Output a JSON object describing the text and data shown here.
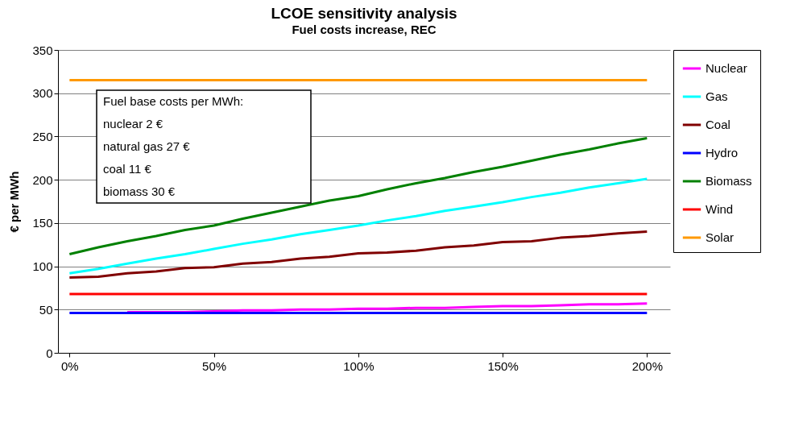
{
  "chart_data": {
    "type": "line",
    "title": "LCOE sensitivity analysis",
    "subtitle": "Fuel costs increase, REC",
    "ylabel": "€ per MWh",
    "x": [
      0,
      10,
      20,
      30,
      40,
      50,
      60,
      70,
      80,
      90,
      100,
      110,
      120,
      130,
      140,
      150,
      160,
      170,
      180,
      190,
      200
    ],
    "xlim": [
      -4,
      208
    ],
    "xticks": [
      {
        "value": 0,
        "label": "0%"
      },
      {
        "value": 50,
        "label": "50%"
      },
      {
        "value": 100,
        "label": "100%"
      },
      {
        "value": 150,
        "label": "150%"
      },
      {
        "value": 200,
        "label": "200%"
      }
    ],
    "ylim": [
      0,
      350
    ],
    "yticks": [
      0,
      50,
      100,
      150,
      200,
      250,
      300,
      350
    ],
    "grid": "y",
    "legend": "right",
    "marker": "none",
    "line_style": "solid",
    "annotations": [
      "Fuel base costs per MWh:",
      "nuclear 2 €",
      "natural gas 27 €",
      "coal 11 €",
      "biomass 30 €"
    ],
    "series": [
      {
        "name": "Nuclear",
        "color": "#ff00ff",
        "values": [
          null,
          null,
          47,
          47,
          47,
          48,
          49,
          49,
          50,
          50,
          51,
          51,
          52,
          52,
          53,
          54,
          54,
          55,
          56,
          56,
          57
        ]
      },
      {
        "name": "Gas",
        "color": "#00ffff",
        "values": [
          92,
          97,
          103,
          109,
          114,
          120,
          126,
          131,
          137,
          142,
          147,
          153,
          158,
          164,
          169,
          174,
          180,
          185,
          191,
          196,
          201
        ]
      },
      {
        "name": "Coal",
        "color": "#800000",
        "values": [
          87,
          88,
          92,
          94,
          98,
          99,
          103,
          105,
          109,
          111,
          115,
          116,
          118,
          122,
          124,
          128,
          129,
          133,
          135,
          138,
          140
        ]
      },
      {
        "name": "Hydro",
        "color": "#0000ff",
        "values": [
          46,
          46,
          46,
          46,
          46,
          46,
          46,
          46,
          46,
          46,
          46,
          46,
          46,
          46,
          46,
          46,
          46,
          46,
          46,
          46,
          46
        ]
      },
      {
        "name": "Biomass",
        "color": "#008000",
        "values": [
          114,
          122,
          129,
          135,
          142,
          147,
          155,
          162,
          169,
          176,
          181,
          189,
          196,
          202,
          209,
          215,
          222,
          229,
          235,
          242,
          248
        ]
      },
      {
        "name": "Wind",
        "color": "#ff0000",
        "values": [
          68,
          68,
          68,
          68,
          68,
          68,
          68,
          68,
          68,
          68,
          68,
          68,
          68,
          68,
          68,
          68,
          68,
          68,
          68,
          68,
          68
        ]
      },
      {
        "name": "Solar",
        "color": "#ff9900",
        "values": [
          315,
          315,
          315,
          315,
          315,
          315,
          315,
          315,
          315,
          315,
          315,
          315,
          315,
          315,
          315,
          315,
          315,
          315,
          315,
          315,
          315
        ]
      }
    ]
  }
}
